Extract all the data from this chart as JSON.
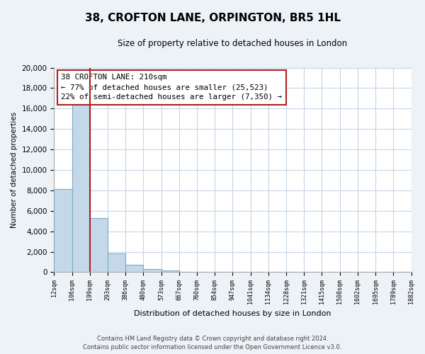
{
  "title": "38, CROFTON LANE, ORPINGTON, BR5 1HL",
  "subtitle": "Size of property relative to detached houses in London",
  "xlabel": "Distribution of detached houses by size in London",
  "ylabel": "Number of detached properties",
  "bar_values": [
    8100,
    16500,
    5300,
    1800,
    750,
    300,
    200,
    0,
    0,
    0,
    0,
    0,
    0,
    0,
    0,
    0,
    0,
    0,
    0,
    0
  ],
  "categories": [
    "12sqm",
    "106sqm",
    "199sqm",
    "293sqm",
    "386sqm",
    "480sqm",
    "573sqm",
    "667sqm",
    "760sqm",
    "854sqm",
    "947sqm",
    "1041sqm",
    "1134sqm",
    "1228sqm",
    "1321sqm",
    "1415sqm",
    "1508sqm",
    "1602sqm",
    "1695sqm",
    "1789sqm",
    "1882sqm"
  ],
  "bar_color": "#c5d8ea",
  "bar_edge_color": "#7aaac8",
  "marker_color": "#aa2222",
  "ylim": [
    0,
    20000
  ],
  "yticks": [
    0,
    2000,
    4000,
    6000,
    8000,
    10000,
    12000,
    14000,
    16000,
    18000,
    20000
  ],
  "annotation_title": "38 CROFTON LANE: 210sqm",
  "annotation_line1": "← 77% of detached houses are smaller (25,523)",
  "annotation_line2": "22% of semi-detached houses are larger (7,350) →",
  "footer1": "Contains HM Land Registry data © Crown copyright and database right 2024.",
  "footer2": "Contains public sector information licensed under the Open Government Licence v3.0.",
  "background_color": "#edf2f7",
  "plot_bg_color": "#ffffff",
  "grid_color": "#c5d5e5"
}
